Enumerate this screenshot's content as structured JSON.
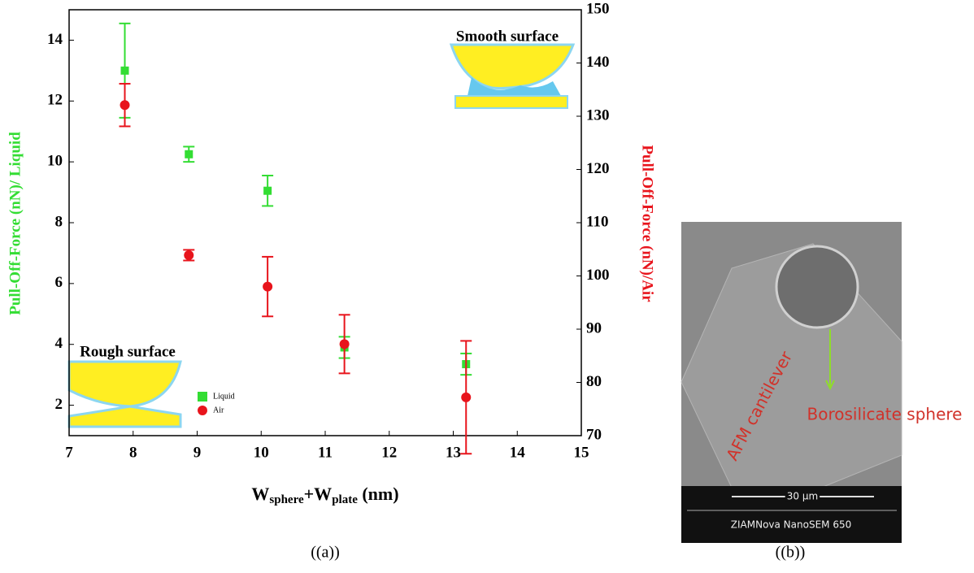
{
  "chart_data": {
    "type": "scatter",
    "xlabel": [
      "W",
      "sphere",
      "+W",
      "plate",
      " (nm)"
    ],
    "ylabel": "Pull-Off-Force (nN)/ Liquid",
    "y2label": "Pull-Off-Force (nN)/Air",
    "xlim": [
      7,
      15
    ],
    "xticks": [
      7,
      8,
      9,
      10,
      11,
      12,
      13,
      14,
      15
    ],
    "ylim": [
      1,
      15
    ],
    "yticks": [
      2,
      4,
      6,
      8,
      10,
      12,
      14
    ],
    "y2lim": [
      70,
      150
    ],
    "y2ticks": [
      70,
      80,
      90,
      100,
      110,
      120,
      130,
      140,
      150
    ],
    "series": [
      {
        "name": "Liquid",
        "color": "#33dd33",
        "marker": "square",
        "axis": "y",
        "x": [
          7.87,
          8.87,
          10.1,
          11.3,
          13.2
        ],
        "values": [
          13.0,
          10.25,
          9.05,
          3.9,
          3.35
        ],
        "errors": [
          1.55,
          0.25,
          0.5,
          0.35,
          0.35
        ]
      },
      {
        "name": "Air",
        "color": "#e8141c",
        "marker": "circle",
        "axis": "y2",
        "x": [
          7.87,
          8.87,
          10.1,
          11.3,
          13.2
        ],
        "values": [
          132.1,
          103.9,
          98.0,
          87.2,
          77.2
        ],
        "errors": [
          4.0,
          1.0,
          5.6,
          5.5,
          10.6
        ]
      }
    ],
    "annotations": [
      "Smooth surface",
      "Rough surface"
    ]
  },
  "figure": {
    "captions": [
      "((a))",
      "((b))"
    ],
    "image_labels": [
      "AFM cantilever",
      "Borosilicate sphere",
      "30 μm",
      "ZIAMNova NanoSEM 650"
    ]
  }
}
